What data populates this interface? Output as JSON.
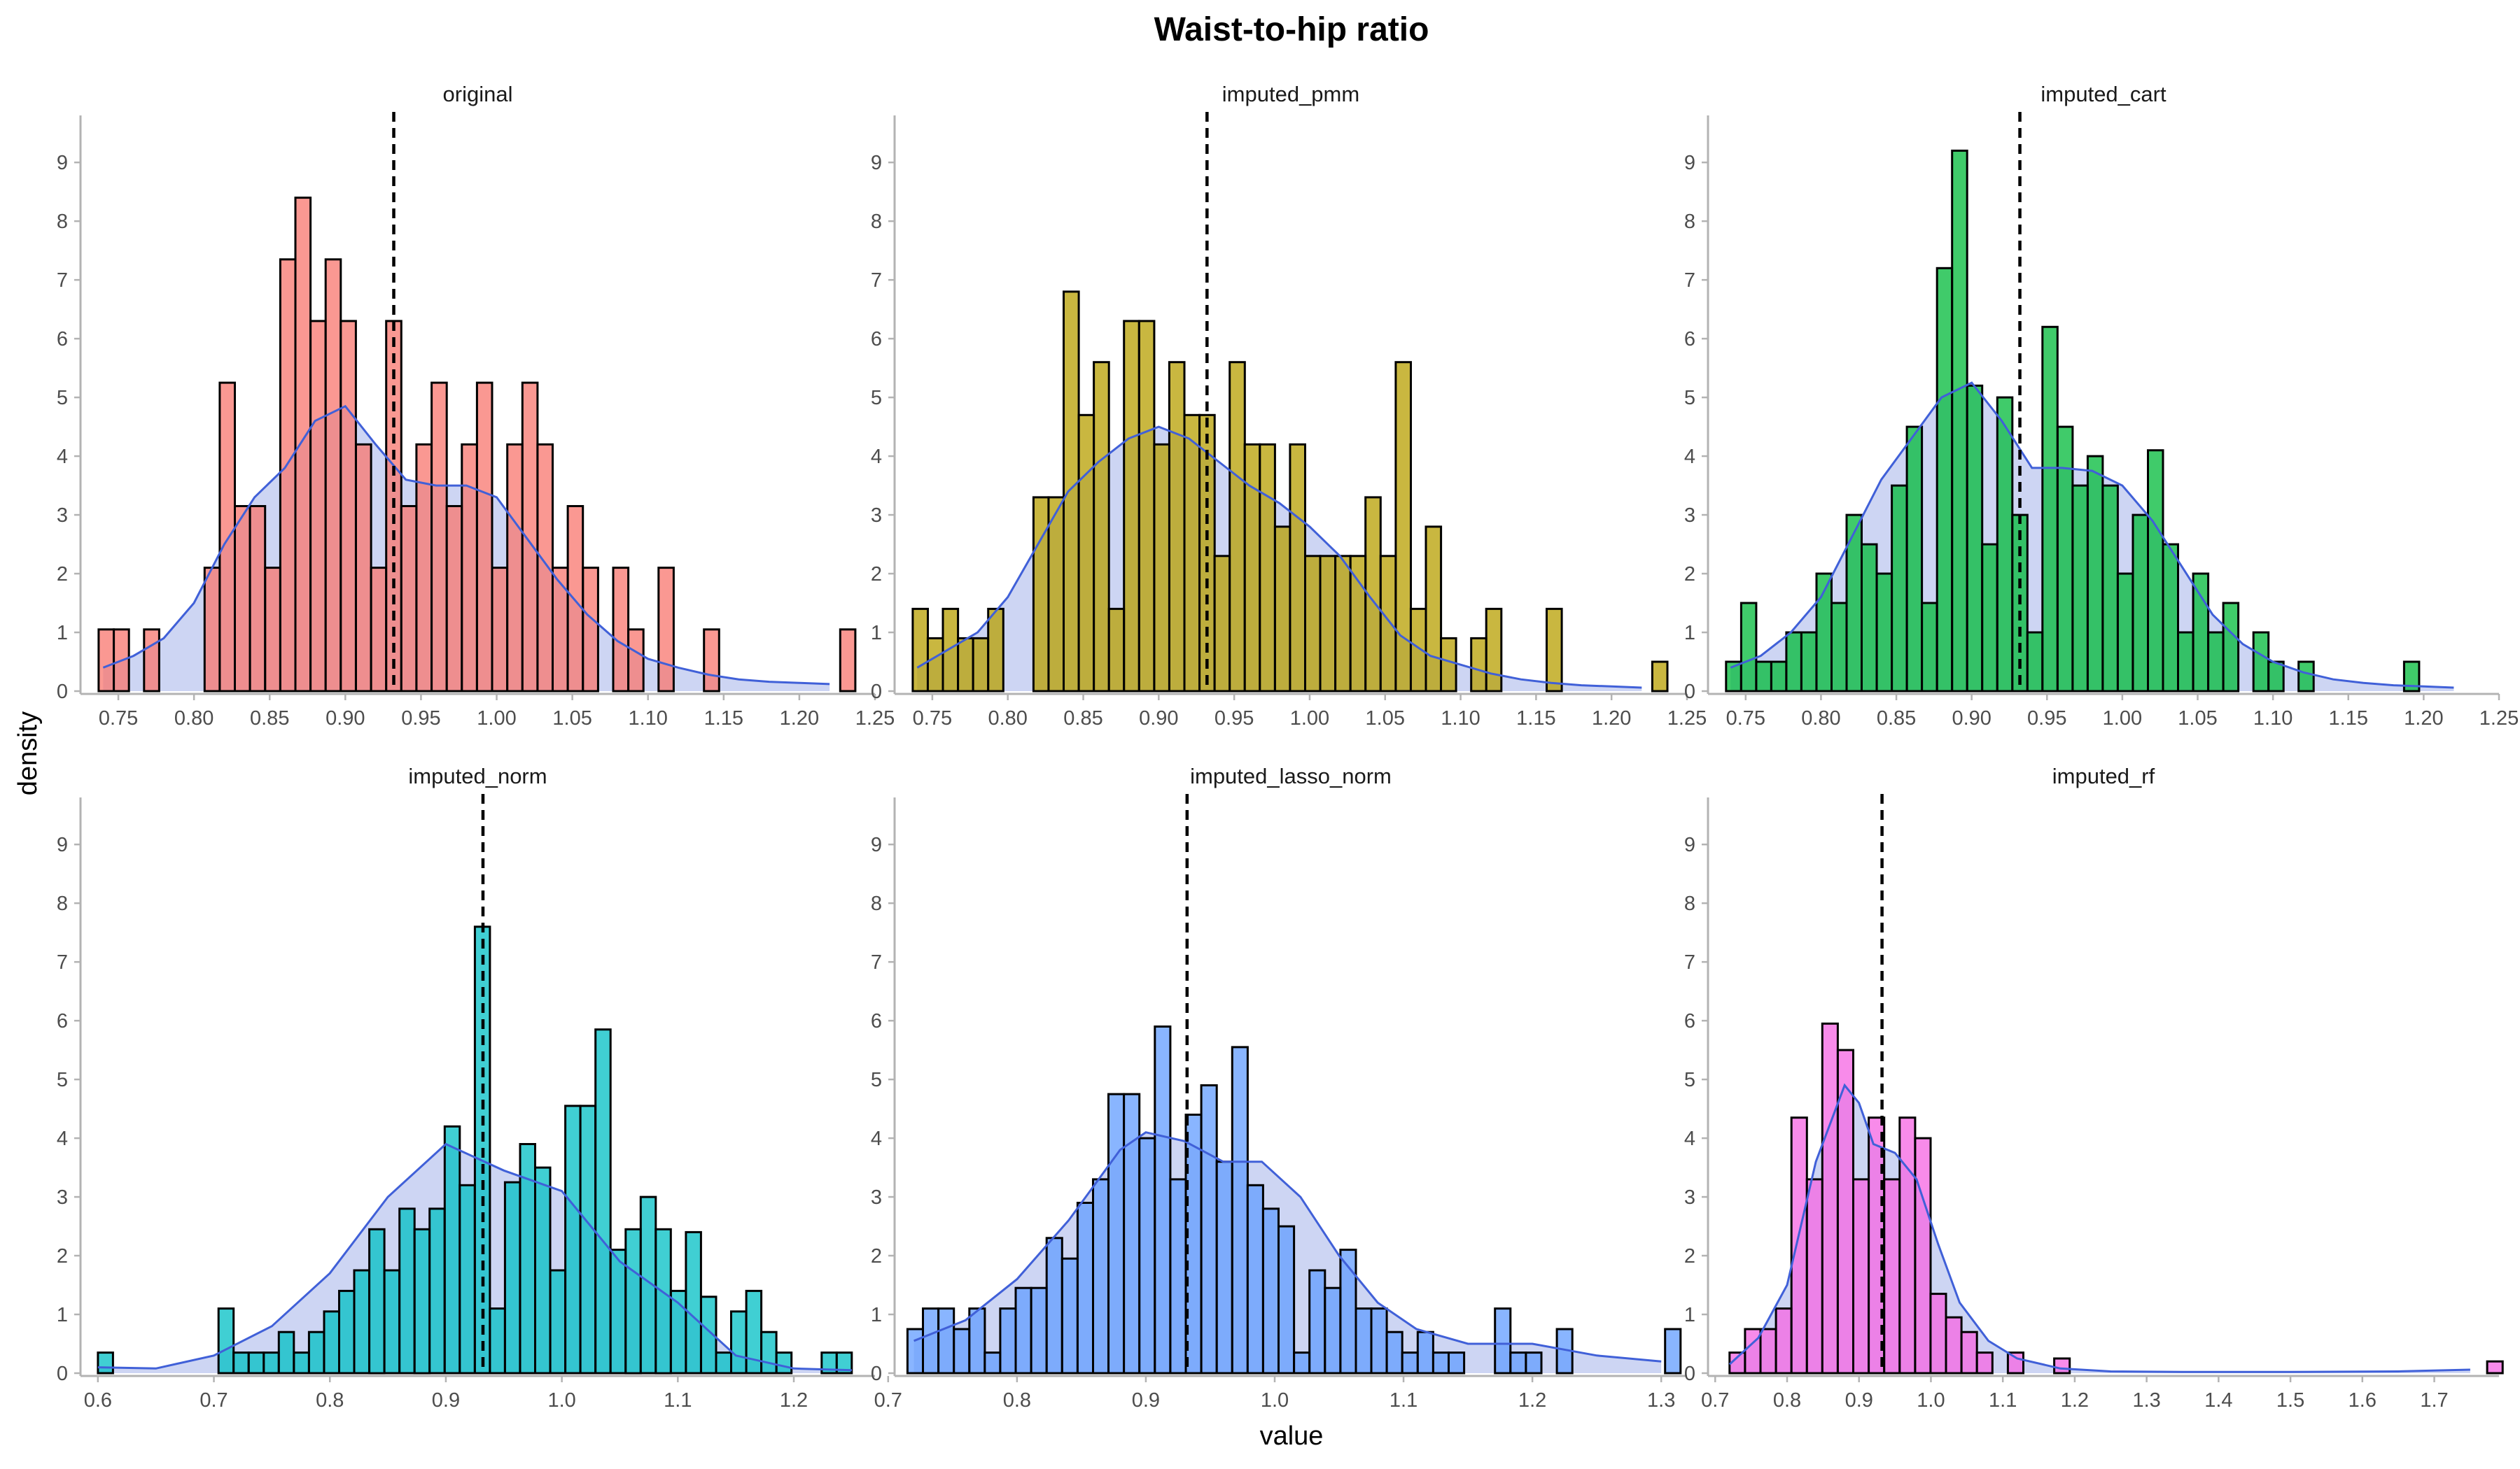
{
  "chart_data": {
    "type": "bar",
    "title": "Waist-to-hip ratio",
    "xlabel": "value",
    "ylabel": "density",
    "ylim": [
      0,
      9.8
    ],
    "y_ticks": [
      0,
      1,
      2,
      3,
      4,
      5,
      6,
      7,
      8,
      9
    ],
    "grid": false,
    "mean_line": 0.932,
    "colors": {
      "density_fill": "#cdd5f3",
      "density_line": "#4060d8",
      "bar_outline": "#000000",
      "axis": "#b3b3b3"
    },
    "panels": [
      {
        "label": "original",
        "fill": "#f8766d",
        "xlim": [
          0.725,
          1.25
        ],
        "x_ticks": [
          "0.75",
          "0.80",
          "0.85",
          "0.90",
          "0.95",
          "1.00",
          "1.05",
          "1.10",
          "1.15",
          "1.20",
          "1.25"
        ],
        "bin_start": 0.737,
        "bin_width": 0.01,
        "hist": [
          1.05,
          1.05,
          0,
          1.05,
          0,
          0,
          0,
          2.1,
          5.25,
          3.15,
          3.15,
          2.1,
          7.35,
          8.4,
          6.3,
          7.35,
          6.3,
          4.2,
          2.1,
          6.3,
          3.15,
          4.2,
          5.25,
          3.15,
          4.2,
          5.25,
          2.1,
          4.2,
          5.25,
          4.2,
          2.1,
          3.15,
          2.1,
          0,
          2.1,
          1.05,
          0,
          2.1,
          0,
          0,
          1.05,
          0,
          0,
          0,
          0,
          0,
          0,
          0,
          0,
          1.05
        ],
        "density_x": [
          0.74,
          0.76,
          0.78,
          0.8,
          0.82,
          0.84,
          0.86,
          0.88,
          0.9,
          0.92,
          0.94,
          0.96,
          0.98,
          1.0,
          1.02,
          1.04,
          1.06,
          1.08,
          1.1,
          1.12,
          1.14,
          1.16,
          1.18,
          1.2,
          1.22
        ],
        "density_y": [
          0.4,
          0.6,
          0.9,
          1.5,
          2.5,
          3.3,
          3.8,
          4.6,
          4.85,
          4.2,
          3.6,
          3.5,
          3.5,
          3.3,
          2.6,
          1.9,
          1.3,
          0.85,
          0.55,
          0.4,
          0.28,
          0.2,
          0.16,
          0.14,
          0.12
        ]
      },
      {
        "label": "imputed_pmm",
        "fill": "#b79f00",
        "xlim": [
          0.725,
          1.25
        ],
        "x_ticks": [
          "0.75",
          "0.80",
          "0.85",
          "0.90",
          "0.95",
          "1.00",
          "1.05",
          "1.10",
          "1.15",
          "1.20",
          "1.25"
        ],
        "bin_start": 0.737,
        "bin_width": 0.01,
        "hist": [
          1.4,
          0.9,
          1.4,
          0.9,
          0.9,
          1.4,
          0,
          0,
          3.3,
          3.3,
          6.8,
          4.7,
          5.6,
          1.4,
          6.3,
          6.3,
          4.2,
          5.6,
          4.7,
          4.7,
          2.3,
          5.6,
          4.2,
          4.2,
          2.8,
          4.2,
          2.3,
          2.3,
          2.3,
          2.3,
          3.3,
          2.3,
          5.6,
          1.4,
          2.8,
          0.9,
          0,
          0.9,
          1.4,
          0,
          0,
          0,
          1.4,
          0,
          0,
          0,
          0,
          0,
          0,
          0.5
        ],
        "density_x": [
          0.74,
          0.76,
          0.78,
          0.8,
          0.82,
          0.84,
          0.86,
          0.88,
          0.9,
          0.92,
          0.94,
          0.96,
          0.98,
          1.0,
          1.02,
          1.04,
          1.06,
          1.08,
          1.1,
          1.12,
          1.14,
          1.16,
          1.18,
          1.2,
          1.22
        ],
        "density_y": [
          0.4,
          0.7,
          1.0,
          1.6,
          2.5,
          3.4,
          3.9,
          4.3,
          4.5,
          4.3,
          3.9,
          3.5,
          3.2,
          2.8,
          2.3,
          1.6,
          0.95,
          0.6,
          0.45,
          0.3,
          0.2,
          0.14,
          0.1,
          0.08,
          0.06
        ]
      },
      {
        "label": "imputed_cart",
        "fill": "#00ba38",
        "xlim": [
          0.725,
          1.25
        ],
        "x_ticks": [
          "0.75",
          "0.80",
          "0.85",
          "0.90",
          "0.95",
          "1.00",
          "1.05",
          "1.10",
          "1.15",
          "1.20",
          "1.25"
        ],
        "bin_start": 0.737,
        "bin_width": 0.01,
        "hist": [
          0.5,
          1.5,
          0.5,
          0.5,
          1,
          1,
          2,
          1.5,
          3,
          2.5,
          2,
          3.5,
          4.5,
          1.5,
          7.2,
          9.2,
          5.2,
          2.5,
          5,
          3,
          1,
          6.2,
          4.5,
          3.5,
          4,
          3.5,
          2,
          3,
          4.1,
          2.5,
          1,
          2,
          1,
          1.5,
          0,
          1,
          0.5,
          0,
          0.5,
          0,
          0,
          0,
          0,
          0,
          0,
          0.5,
          0,
          0,
          0,
          0
        ],
        "density_x": [
          0.74,
          0.76,
          0.78,
          0.8,
          0.82,
          0.84,
          0.86,
          0.88,
          0.9,
          0.92,
          0.94,
          0.96,
          0.98,
          1.0,
          1.02,
          1.04,
          1.06,
          1.08,
          1.1,
          1.12,
          1.14,
          1.16,
          1.18,
          1.2,
          1.22
        ],
        "density_y": [
          0.4,
          0.6,
          1.0,
          1.6,
          2.6,
          3.6,
          4.3,
          5.0,
          5.25,
          4.6,
          3.8,
          3.8,
          3.75,
          3.5,
          2.9,
          2.1,
          1.3,
          0.8,
          0.5,
          0.32,
          0.2,
          0.14,
          0.1,
          0.08,
          0.06
        ]
      },
      {
        "label": "imputed_norm",
        "fill": "#00bfc4",
        "xlim": [
          0.585,
          1.27
        ],
        "x_ticks": [
          "0.6",
          "0.7",
          "0.8",
          "0.9",
          "1.0",
          "1.1",
          "1.2"
        ],
        "bin_start": 0.6,
        "bin_width": 0.013,
        "hist": [
          0.35,
          0,
          0,
          0,
          0,
          0,
          0,
          0,
          1.1,
          0.35,
          0.35,
          0.35,
          0.7,
          0.35,
          0.7,
          1.05,
          1.4,
          1.75,
          2.45,
          1.75,
          2.8,
          2.45,
          2.8,
          4.2,
          3.2,
          7.6,
          1.1,
          3.25,
          3.9,
          3.5,
          1.75,
          4.55,
          4.55,
          5.85,
          2.1,
          2.45,
          3.0,
          2.45,
          1.4,
          2.4,
          1.3,
          0.35,
          1.05,
          1.4,
          0.7,
          0.35,
          0,
          0,
          0.35,
          0.35
        ],
        "density_x": [
          0.6,
          0.65,
          0.7,
          0.75,
          0.8,
          0.85,
          0.9,
          0.95,
          1.0,
          1.05,
          1.1,
          1.15,
          1.2,
          1.25
        ],
        "density_y": [
          0.1,
          0.08,
          0.3,
          0.8,
          1.7,
          3.0,
          3.9,
          3.45,
          3.1,
          1.9,
          1.2,
          0.3,
          0.08,
          0.05
        ]
      },
      {
        "label": "imputed_lasso_norm",
        "fill": "#619cff",
        "xlim": [
          0.705,
          1.32
        ],
        "x_ticks": [
          "0.7",
          "0.8",
          "0.9",
          "1.0",
          "1.1",
          "1.2",
          "1.3"
        ],
        "bin_start": 0.715,
        "bin_width": 0.012,
        "hist": [
          0.75,
          1.1,
          1.1,
          0.75,
          1.1,
          0.35,
          1.1,
          1.45,
          1.45,
          2.3,
          1.95,
          2.9,
          3.3,
          4.75,
          4.75,
          4.0,
          5.9,
          3.3,
          4.4,
          4.9,
          3.6,
          5.55,
          3.2,
          2.8,
          2.5,
          0.35,
          1.75,
          1.45,
          2.1,
          1.1,
          1.1,
          0.7,
          0.35,
          0.7,
          0.35,
          0.35,
          0,
          0,
          1.1,
          0.35,
          0.35,
          0,
          0.75,
          0,
          0,
          0,
          0,
          0,
          0,
          0.75
        ],
        "density_x": [
          0.72,
          0.76,
          0.8,
          0.84,
          0.88,
          0.9,
          0.93,
          0.96,
          0.99,
          1.02,
          1.05,
          1.08,
          1.11,
          1.15,
          1.2,
          1.25,
          1.3
        ],
        "density_y": [
          0.55,
          0.9,
          1.6,
          2.6,
          3.8,
          4.1,
          3.95,
          3.6,
          3.6,
          3.0,
          2.0,
          1.2,
          0.75,
          0.5,
          0.5,
          0.3,
          0.2
        ]
      },
      {
        "label": "imputed_rf",
        "fill": "#f564e3",
        "xlim": [
          0.69,
          1.79
        ],
        "x_ticks": [
          "0.7",
          "0.8",
          "0.9",
          "1.0",
          "1.1",
          "1.2",
          "1.3",
          "1.4",
          "1.5",
          "1.6",
          "1.7"
        ],
        "bin_start": 0.72,
        "bin_width": 0.0215,
        "hist": [
          0.35,
          0.75,
          0.75,
          1.1,
          4.35,
          3.3,
          5.95,
          5.5,
          3.3,
          4.35,
          3.3,
          4.35,
          4.0,
          1.35,
          0.95,
          0.7,
          0.35,
          0,
          0.35,
          0,
          0,
          0.25,
          0,
          0,
          0,
          0,
          0,
          0,
          0,
          0,
          0,
          0,
          0,
          0,
          0,
          0,
          0,
          0,
          0,
          0,
          0,
          0,
          0,
          0,
          0,
          0,
          0,
          0,
          0,
          0.2
        ],
        "density_x": [
          0.72,
          0.76,
          0.8,
          0.84,
          0.88,
          0.9,
          0.92,
          0.95,
          0.98,
          1.01,
          1.04,
          1.08,
          1.12,
          1.18,
          1.25,
          1.35,
          1.5,
          1.65,
          1.75
        ],
        "density_y": [
          0.15,
          0.6,
          1.5,
          3.6,
          4.9,
          4.6,
          3.9,
          3.75,
          3.3,
          2.2,
          1.2,
          0.55,
          0.25,
          0.08,
          0.03,
          0.02,
          0.02,
          0.03,
          0.06
        ]
      }
    ]
  }
}
